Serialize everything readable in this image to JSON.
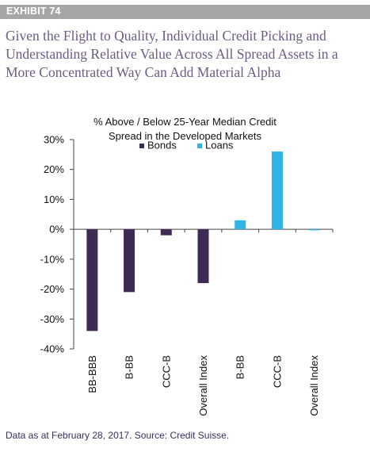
{
  "exhibit": {
    "label": "EXHIBIT 74"
  },
  "headline": "Given the Flight to Quality, Individual Credit Picking and Understanding Relative Value Across All Spread Assets in a More Concentrated Way Can Add Material Alpha",
  "source_note": "Data as at February 28, 2017. Source: Credit Suisse.",
  "colors": {
    "bonds": "#3f2a56",
    "loans": "#2fb4e6",
    "header_bg": "#a6a6a6",
    "headline": "#6b5b86",
    "source": "#3a2d5c"
  },
  "chart_data": {
    "type": "bar",
    "title_line1": "% Above / Below 25-Year Median Credit",
    "title_line2": "Spread in the Developed Markets",
    "categories": [
      "BB-BBB",
      "B-BB",
      "CCC-B",
      "Overall Index",
      "B-BB",
      "CCC-B",
      "Overall Index"
    ],
    "series": [
      {
        "name": "Bonds",
        "color": "#3f2a56",
        "values": [
          -34,
          -21,
          -2,
          -18,
          null,
          null,
          null
        ]
      },
      {
        "name": "Loans",
        "color": "#2fb4e6",
        "values": [
          null,
          null,
          null,
          null,
          3,
          26,
          -0.3
        ]
      }
    ],
    "yticks": [
      "30%",
      "20%",
      "10%",
      "0%",
      "-10%",
      "-20%",
      "-30%",
      "-40%"
    ],
    "ylim": [
      -40,
      30
    ],
    "legend_position": "top"
  }
}
